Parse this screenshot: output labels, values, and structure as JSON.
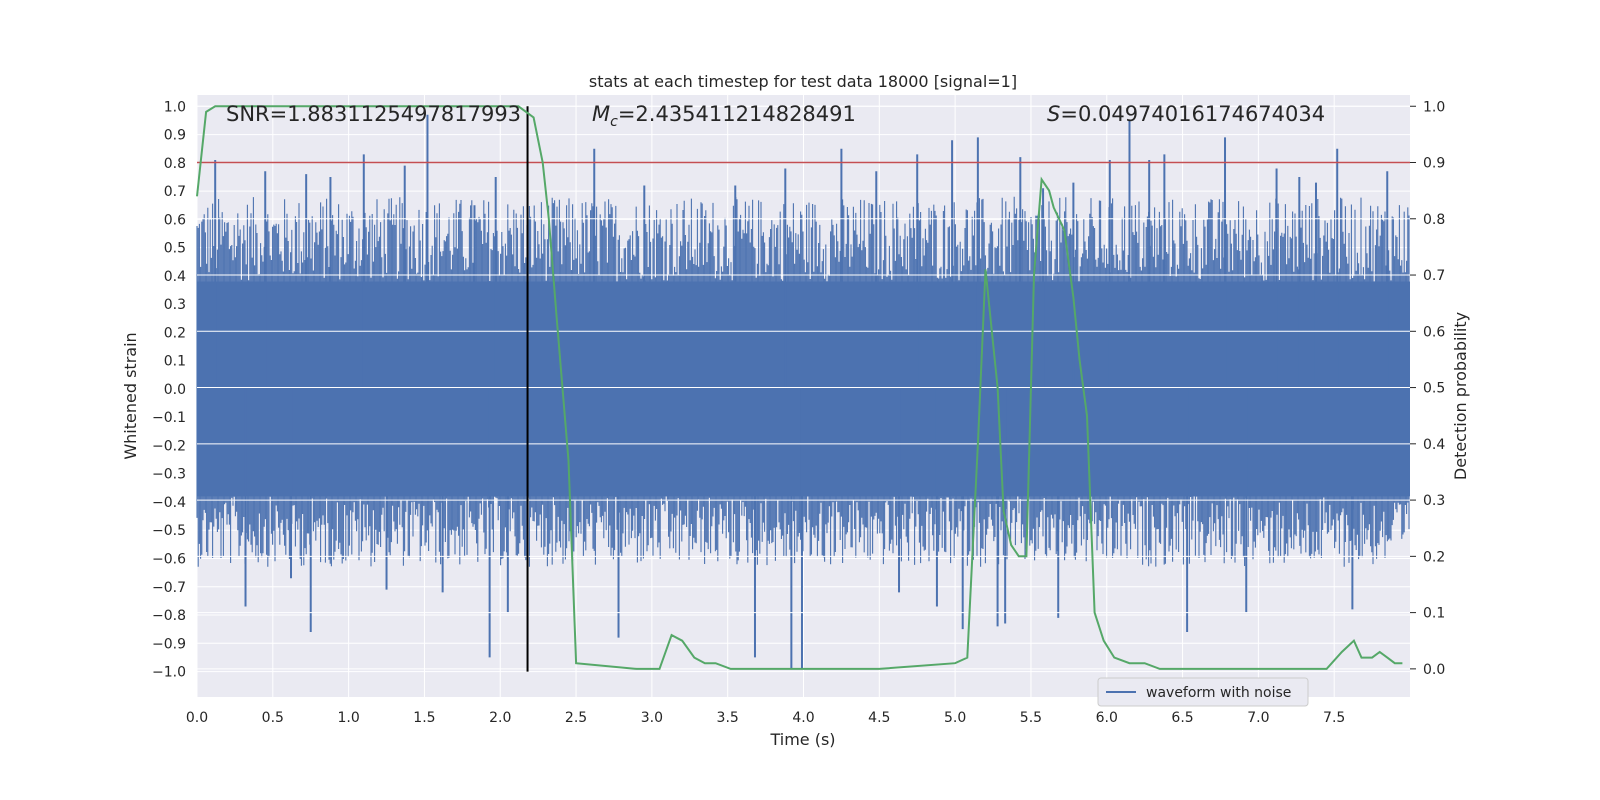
{
  "chart_data": {
    "type": "line",
    "title": "stats at each timestep for test data 18000 [signal=1]",
    "xlabel": "Time (s)",
    "ylabel_left": "Whitened strain",
    "ylabel_right": "Detection probability",
    "xlim": [
      0.0,
      8.0
    ],
    "ylim_left": [
      -1.09,
      1.04
    ],
    "ylim_right": [
      -0.05,
      1.02
    ],
    "x_ticks": [
      0.0,
      0.5,
      1.0,
      1.5,
      2.0,
      2.5,
      3.0,
      3.5,
      4.0,
      4.5,
      5.0,
      5.5,
      6.0,
      6.5,
      7.0,
      7.5
    ],
    "x_tick_labels": [
      "0.0",
      "0.5",
      "1.0",
      "1.5",
      "2.0",
      "2.5",
      "3.0",
      "3.5",
      "4.0",
      "4.5",
      "5.0",
      "5.5",
      "6.0",
      "6.5",
      "7.0",
      "7.5"
    ],
    "y_left_ticks": [
      1.0,
      0.9,
      0.8,
      0.7,
      0.6,
      0.5,
      0.4,
      0.3,
      0.2,
      0.1,
      0.0,
      -0.1,
      -0.2,
      -0.3,
      -0.4,
      -0.5,
      -0.6,
      -0.7,
      -0.8,
      -0.9,
      -1.0
    ],
    "y_left_tick_labels": [
      "1.0",
      "0.9",
      "0.8",
      "0.7",
      "0.6",
      "0.5",
      "0.4",
      "0.3",
      "0.2",
      "0.1",
      "0.0",
      "−0.1",
      "−0.2",
      "−0.3",
      "−0.4",
      "−0.5",
      "−0.6",
      "−0.7",
      "−0.8",
      "−0.9",
      "−1.0"
    ],
    "y_right_ticks": [
      1.0,
      0.9,
      0.8,
      0.7,
      0.6,
      0.5,
      0.4,
      0.3,
      0.2,
      0.1,
      0.0
    ],
    "y_right_tick_labels": [
      "1.0",
      "0.9",
      "0.8",
      "0.7",
      "0.6",
      "0.5",
      "0.4",
      "0.3",
      "0.2",
      "0.1",
      "0.0"
    ],
    "grid": true,
    "legend_position": "bottom-right",
    "annotations": {
      "snr": "SNR=1.8831125497817993",
      "mc_symbol": "M",
      "mc_subscript": "c",
      "mc_value": "=2.435411214828491",
      "s_symbol": "S",
      "s_value": "=0.04974016174674034"
    },
    "threshold": 0.9,
    "vertical_marker_x": 2.18,
    "series": [
      {
        "name": "waveform with noise",
        "axis": "left",
        "core_band": [
          -0.38,
          0.38
        ],
        "spikes": [
          [
            0.12,
            0.81
          ],
          [
            0.32,
            -0.77
          ],
          [
            0.45,
            0.77
          ],
          [
            0.62,
            -0.67
          ],
          [
            0.72,
            0.76
          ],
          [
            0.75,
            -0.86
          ],
          [
            0.88,
            0.75
          ],
          [
            1.1,
            0.83
          ],
          [
            1.25,
            -0.71
          ],
          [
            1.37,
            0.79
          ],
          [
            1.52,
            0.97
          ],
          [
            1.62,
            -0.72
          ],
          [
            1.83,
            0.65
          ],
          [
            1.93,
            -0.95
          ],
          [
            1.97,
            0.75
          ],
          [
            2.05,
            -0.79
          ],
          [
            2.62,
            0.85
          ],
          [
            2.78,
            -0.88
          ],
          [
            2.95,
            0.72
          ],
          [
            3.55,
            0.72
          ],
          [
            3.68,
            -0.95
          ],
          [
            3.88,
            0.78
          ],
          [
            3.92,
            -0.99
          ],
          [
            3.99,
            -0.99
          ],
          [
            4.25,
            0.85
          ],
          [
            4.48,
            0.77
          ],
          [
            4.63,
            -0.72
          ],
          [
            4.75,
            0.83
          ],
          [
            4.88,
            -0.77
          ],
          [
            4.98,
            0.88
          ],
          [
            5.05,
            -0.85
          ],
          [
            5.15,
            0.89
          ],
          [
            5.28,
            -0.84
          ],
          [
            5.33,
            -0.83
          ],
          [
            5.43,
            0.82
          ],
          [
            5.58,
            0.71
          ],
          [
            5.68,
            -0.81
          ],
          [
            5.78,
            0.73
          ],
          [
            6.02,
            0.81
          ],
          [
            6.15,
            0.95
          ],
          [
            6.28,
            0.81
          ],
          [
            6.38,
            0.83
          ],
          [
            6.53,
            -0.86
          ],
          [
            6.78,
            0.89
          ],
          [
            6.92,
            -0.79
          ],
          [
            7.12,
            0.78
          ],
          [
            7.27,
            0.75
          ],
          [
            7.38,
            0.73
          ],
          [
            7.52,
            0.85
          ],
          [
            7.62,
            -0.78
          ],
          [
            7.85,
            0.77
          ]
        ]
      },
      {
        "name": "",
        "axis": "right",
        "x": [
          0.0,
          0.06,
          0.12,
          0.5,
          1.0,
          1.5,
          1.6,
          1.7,
          2.0,
          2.12,
          2.22,
          2.28,
          2.32,
          2.37,
          2.45,
          2.5,
          2.9,
          3.05,
          3.13,
          3.2,
          3.28,
          3.35,
          3.42,
          3.52,
          3.8,
          4.0,
          4.5,
          5.0,
          5.08,
          5.15,
          5.2,
          5.28,
          5.32,
          5.37,
          5.42,
          5.47,
          5.52,
          5.57,
          5.62,
          5.65,
          5.72,
          5.78,
          5.82,
          5.87,
          5.92,
          5.98,
          6.05,
          6.15,
          6.25,
          6.35,
          6.6,
          7.0,
          7.45,
          7.55,
          7.63,
          7.68,
          7.75,
          7.8,
          7.85,
          7.9,
          7.95
        ],
        "values": [
          0.84,
          0.99,
          1.0,
          1.0,
          1.0,
          1.0,
          1.0,
          1.0,
          1.0,
          1.0,
          0.98,
          0.9,
          0.8,
          0.63,
          0.37,
          0.01,
          0.0,
          0.0,
          0.06,
          0.05,
          0.02,
          0.01,
          0.01,
          0.0,
          0.0,
          0.0,
          0.0,
          0.01,
          0.02,
          0.4,
          0.71,
          0.5,
          0.28,
          0.22,
          0.2,
          0.2,
          0.7,
          0.87,
          0.85,
          0.82,
          0.78,
          0.66,
          0.55,
          0.45,
          0.1,
          0.05,
          0.02,
          0.01,
          0.01,
          0.0,
          0.0,
          0.0,
          0.0,
          0.03,
          0.05,
          0.02,
          0.02,
          0.03,
          0.02,
          0.01,
          0.01
        ]
      }
    ]
  }
}
